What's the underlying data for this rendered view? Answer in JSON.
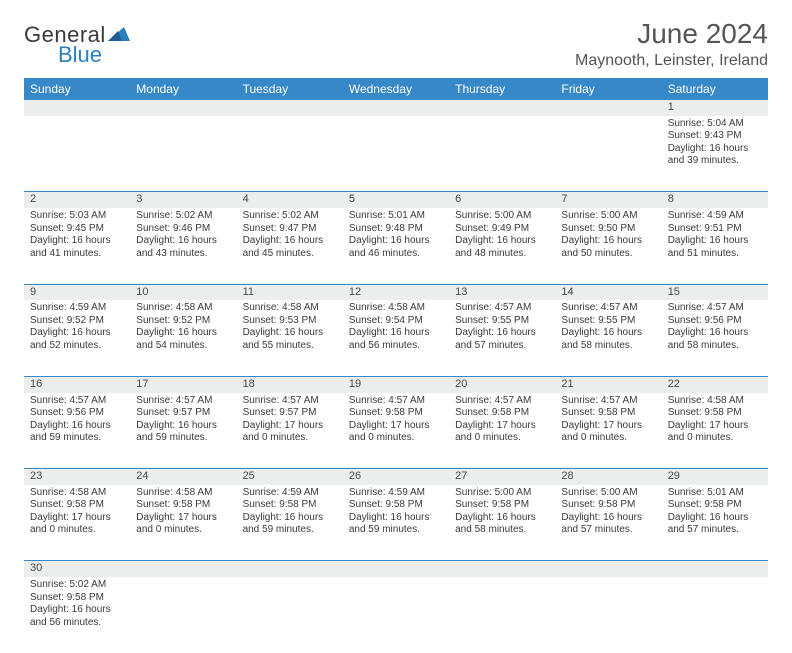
{
  "logo": {
    "text1": "General",
    "text2": "Blue",
    "tri_color": "#2a7fbf"
  },
  "title": "June 2024",
  "location": "Maynooth, Leinster, Ireland",
  "colors": {
    "header_bg": "#3788c8",
    "header_fg": "#ffffff",
    "daynum_bg": "#eceded",
    "row_border": "#3788c8",
    "text": "#3a3a3a"
  },
  "weekdays": [
    "Sunday",
    "Monday",
    "Tuesday",
    "Wednesday",
    "Thursday",
    "Friday",
    "Saturday"
  ],
  "weeks": [
    [
      null,
      null,
      null,
      null,
      null,
      null,
      {
        "n": "1",
        "sr": "5:04 AM",
        "ss": "9:43 PM",
        "dl": "16 hours and 39 minutes."
      }
    ],
    [
      {
        "n": "2",
        "sr": "5:03 AM",
        "ss": "9:45 PM",
        "dl": "16 hours and 41 minutes."
      },
      {
        "n": "3",
        "sr": "5:02 AM",
        "ss": "9:46 PM",
        "dl": "16 hours and 43 minutes."
      },
      {
        "n": "4",
        "sr": "5:02 AM",
        "ss": "9:47 PM",
        "dl": "16 hours and 45 minutes."
      },
      {
        "n": "5",
        "sr": "5:01 AM",
        "ss": "9:48 PM",
        "dl": "16 hours and 46 minutes."
      },
      {
        "n": "6",
        "sr": "5:00 AM",
        "ss": "9:49 PM",
        "dl": "16 hours and 48 minutes."
      },
      {
        "n": "7",
        "sr": "5:00 AM",
        "ss": "9:50 PM",
        "dl": "16 hours and 50 minutes."
      },
      {
        "n": "8",
        "sr": "4:59 AM",
        "ss": "9:51 PM",
        "dl": "16 hours and 51 minutes."
      }
    ],
    [
      {
        "n": "9",
        "sr": "4:59 AM",
        "ss": "9:52 PM",
        "dl": "16 hours and 52 minutes."
      },
      {
        "n": "10",
        "sr": "4:58 AM",
        "ss": "9:52 PM",
        "dl": "16 hours and 54 minutes."
      },
      {
        "n": "11",
        "sr": "4:58 AM",
        "ss": "9:53 PM",
        "dl": "16 hours and 55 minutes."
      },
      {
        "n": "12",
        "sr": "4:58 AM",
        "ss": "9:54 PM",
        "dl": "16 hours and 56 minutes."
      },
      {
        "n": "13",
        "sr": "4:57 AM",
        "ss": "9:55 PM",
        "dl": "16 hours and 57 minutes."
      },
      {
        "n": "14",
        "sr": "4:57 AM",
        "ss": "9:55 PM",
        "dl": "16 hours and 58 minutes."
      },
      {
        "n": "15",
        "sr": "4:57 AM",
        "ss": "9:56 PM",
        "dl": "16 hours and 58 minutes."
      }
    ],
    [
      {
        "n": "16",
        "sr": "4:57 AM",
        "ss": "9:56 PM",
        "dl": "16 hours and 59 minutes."
      },
      {
        "n": "17",
        "sr": "4:57 AM",
        "ss": "9:57 PM",
        "dl": "16 hours and 59 minutes."
      },
      {
        "n": "18",
        "sr": "4:57 AM",
        "ss": "9:57 PM",
        "dl": "17 hours and 0 minutes."
      },
      {
        "n": "19",
        "sr": "4:57 AM",
        "ss": "9:58 PM",
        "dl": "17 hours and 0 minutes."
      },
      {
        "n": "20",
        "sr": "4:57 AM",
        "ss": "9:58 PM",
        "dl": "17 hours and 0 minutes."
      },
      {
        "n": "21",
        "sr": "4:57 AM",
        "ss": "9:58 PM",
        "dl": "17 hours and 0 minutes."
      },
      {
        "n": "22",
        "sr": "4:58 AM",
        "ss": "9:58 PM",
        "dl": "17 hours and 0 minutes."
      }
    ],
    [
      {
        "n": "23",
        "sr": "4:58 AM",
        "ss": "9:58 PM",
        "dl": "17 hours and 0 minutes."
      },
      {
        "n": "24",
        "sr": "4:58 AM",
        "ss": "9:58 PM",
        "dl": "17 hours and 0 minutes."
      },
      {
        "n": "25",
        "sr": "4:59 AM",
        "ss": "9:58 PM",
        "dl": "16 hours and 59 minutes."
      },
      {
        "n": "26",
        "sr": "4:59 AM",
        "ss": "9:58 PM",
        "dl": "16 hours and 59 minutes."
      },
      {
        "n": "27",
        "sr": "5:00 AM",
        "ss": "9:58 PM",
        "dl": "16 hours and 58 minutes."
      },
      {
        "n": "28",
        "sr": "5:00 AM",
        "ss": "9:58 PM",
        "dl": "16 hours and 57 minutes."
      },
      {
        "n": "29",
        "sr": "5:01 AM",
        "ss": "9:58 PM",
        "dl": "16 hours and 57 minutes."
      }
    ],
    [
      {
        "n": "30",
        "sr": "5:02 AM",
        "ss": "9:58 PM",
        "dl": "16 hours and 56 minutes."
      },
      null,
      null,
      null,
      null,
      null,
      null
    ]
  ],
  "labels": {
    "sunrise": "Sunrise:",
    "sunset": "Sunset:",
    "daylight": "Daylight:"
  }
}
